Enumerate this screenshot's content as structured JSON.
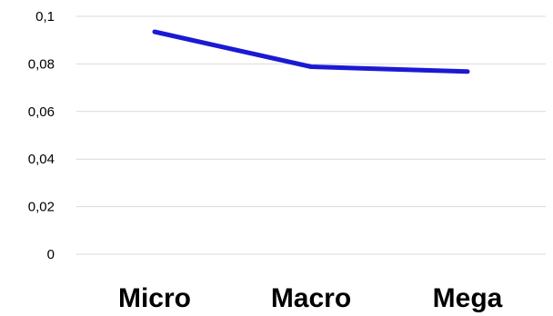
{
  "chart_data": {
    "type": "line",
    "categories": [
      "Micro",
      "Macro",
      "Mega"
    ],
    "series": [
      {
        "values": [
          0.0935,
          0.0788,
          0.0768
        ],
        "color": "#1a1ad4"
      }
    ],
    "ylim": [
      0,
      0.1
    ],
    "yticks": [
      {
        "value": 0,
        "label": "0"
      },
      {
        "value": 0.02,
        "label": "0,02"
      },
      {
        "value": 0.04,
        "label": "0,04"
      },
      {
        "value": 0.06,
        "label": "0,06"
      },
      {
        "value": 0.08,
        "label": "0,08"
      },
      {
        "value": 0.1,
        "label": "0,1"
      }
    ],
    "grid": true,
    "legend": "none"
  }
}
